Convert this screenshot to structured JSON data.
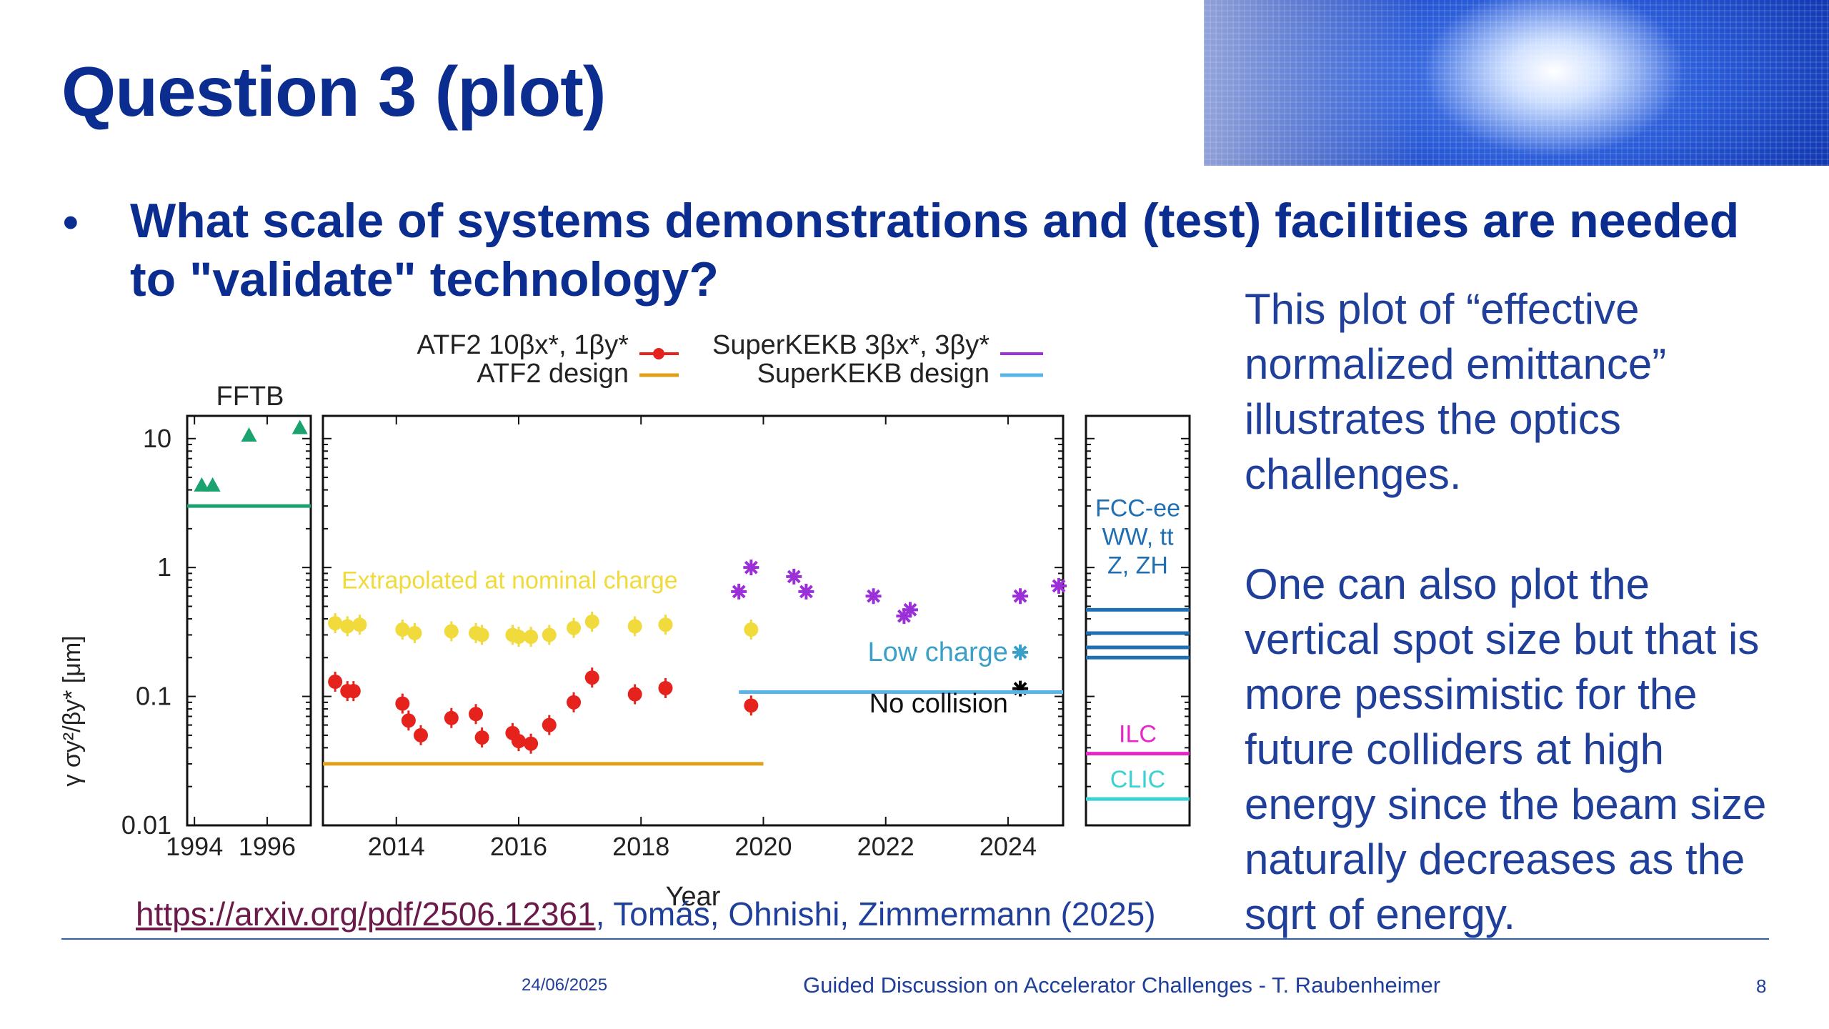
{
  "slide": {
    "title": "Question 3 (plot)",
    "bullet_symbol": "•",
    "bullet": "What scale of systems demonstrations and (test) facilities are needed to \"validate\" technology?",
    "side_text": "This plot of “effective normalized emittance” illustrates the optics challenges.\n\nOne can also plot the vertical spot size but that is more pessimistic for the future colliders at high energy since the beam size naturally decreases as the sqrt of energy.",
    "citation": {
      "link": "https://arxiv.org/pdf/2506.12361",
      "rest": ", Tomás, Ohnishi, Zimmermann (2025)"
    },
    "footer": {
      "date": "24/06/2025",
      "center": "Guided Discussion on Accelerator Challenges - T. Raubenheimer",
      "page": "8"
    }
  },
  "chart_data": {
    "type": "scatter",
    "ylabel": "γ σy²/βy* [μm]",
    "xlabel": "Year",
    "yscale": "log",
    "ylim": [
      0.01,
      15
    ],
    "y_ticks": [
      "0.01",
      "0.1",
      "1",
      "10"
    ],
    "legend": {
      "placement": "top",
      "entries": [
        {
          "label": "ATF2 10βx*, 1βy*",
          "color": "#e5221c"
        },
        {
          "label": "ATF2 design",
          "color": "#e0a01b"
        },
        {
          "label": "SuperKEKB 3βx*, 3βy*",
          "color": "#9b30d8"
        },
        {
          "label": "SuperKEKB design",
          "color": "#59b4e8"
        }
      ]
    },
    "panels": [
      {
        "name": "FFTB",
        "xlim": [
          1993.8,
          1997.2
        ],
        "x_ticks": [
          "1994",
          "1996"
        ],
        "series": [
          {
            "name": "FFTB",
            "color": "#1aa36f",
            "marker": "triangle",
            "points": [
              [
                1994.2,
                4.3
              ],
              [
                1994.5,
                4.3
              ],
              [
                1995.5,
                10.5
              ],
              [
                1996.9,
                12
              ]
            ]
          },
          {
            "name": "FFTB design",
            "color": "#1aa36f",
            "type": "hline",
            "y": 3.0
          }
        ]
      },
      {
        "name": "main",
        "xlim": [
          2012.8,
          2024.9
        ],
        "x_ticks": [
          "2014",
          "2016",
          "2018",
          "2020",
          "2022",
          "2024"
        ],
        "series": [
          {
            "name": "ATF2 10βx*, 1βy*",
            "color": "#e5221c",
            "marker": "dot",
            "points": [
              [
                2013.0,
                0.13
              ],
              [
                2013.2,
                0.11
              ],
              [
                2013.3,
                0.11
              ],
              [
                2014.1,
                0.088
              ],
              [
                2014.2,
                0.065
              ],
              [
                2014.4,
                0.05
              ],
              [
                2014.9,
                0.068
              ],
              [
                2015.3,
                0.073
              ],
              [
                2015.4,
                0.048
              ],
              [
                2015.9,
                0.052
              ],
              [
                2016.0,
                0.045
              ],
              [
                2016.2,
                0.043
              ],
              [
                2016.5,
                0.06
              ],
              [
                2016.9,
                0.09
              ],
              [
                2017.2,
                0.14
              ],
              [
                2017.9,
                0.104
              ],
              [
                2018.4,
                0.116
              ],
              [
                2019.8,
                0.085
              ]
            ]
          },
          {
            "name": "Extrapolated at nominal charge",
            "color": "#f0da3c",
            "marker": "dot",
            "points": [
              [
                2013.0,
                0.37
              ],
              [
                2013.2,
                0.35
              ],
              [
                2013.4,
                0.36
              ],
              [
                2014.1,
                0.33
              ],
              [
                2014.3,
                0.31
              ],
              [
                2014.9,
                0.32
              ],
              [
                2015.3,
                0.31
              ],
              [
                2015.4,
                0.3
              ],
              [
                2015.9,
                0.3
              ],
              [
                2016.0,
                0.29
              ],
              [
                2016.2,
                0.29
              ],
              [
                2016.5,
                0.3
              ],
              [
                2016.9,
                0.34
              ],
              [
                2017.2,
                0.38
              ],
              [
                2017.9,
                0.35
              ],
              [
                2018.4,
                0.36
              ],
              [
                2019.8,
                0.33
              ]
            ]
          },
          {
            "name": "SuperKEKB 3βx*, 3βy*",
            "color": "#9b30d8",
            "marker": "star",
            "points": [
              [
                2019.6,
                0.65
              ],
              [
                2019.8,
                1.0
              ],
              [
                2020.5,
                0.85
              ],
              [
                2020.7,
                0.65
              ],
              [
                2021.8,
                0.6
              ],
              [
                2022.3,
                0.42
              ],
              [
                2022.4,
                0.47
              ],
              [
                2024.2,
                0.6
              ],
              [
                2024.9,
                0.72
              ]
            ]
          },
          {
            "name": "Low charge",
            "color": "#3aa0c9",
            "marker": "star",
            "points": [
              [
                2024.2,
                0.22
              ]
            ]
          },
          {
            "name": "No collision",
            "color": "#000000",
            "marker": "star",
            "points": [
              [
                2024.2,
                0.115
              ]
            ]
          },
          {
            "name": "ATF2 design",
            "color": "#e0a01b",
            "type": "hline",
            "y": 0.03,
            "x_from": 2012.8,
            "x_to": 2020.0
          },
          {
            "name": "SuperKEKB design",
            "color": "#59b4e8",
            "type": "hline",
            "y": 0.108,
            "x_from": 2019.6,
            "x_to": 2024.9
          }
        ],
        "annotations": [
          "Extrapolated at nominal charge",
          "Low charge",
          "No collision"
        ]
      },
      {
        "name": "future",
        "series": [
          {
            "name": "FCC-ee",
            "color": "#1f6fb2",
            "type": "hlines",
            "y": [
              0.47,
              0.31,
              0.24,
              0.2
            ]
          },
          {
            "name": "ILC",
            "color": "#e826c8",
            "type": "hline",
            "y": 0.036
          },
          {
            "name": "CLIC",
            "color": "#3ad1d1",
            "type": "hline",
            "y": 0.016
          }
        ],
        "annotations": {
          "fcc": [
            "FCC-ee",
            "WW, tt",
            "Z, ZH"
          ],
          "ilc": "ILC",
          "clic": "CLIC"
        }
      }
    ]
  }
}
